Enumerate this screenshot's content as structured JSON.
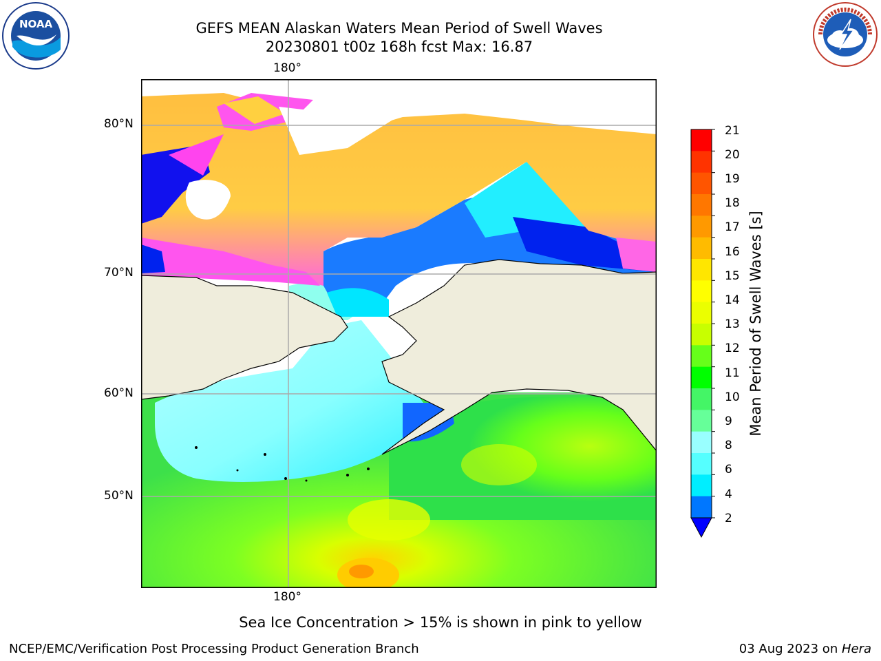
{
  "header": {
    "title_line1": "GEFS MEAN Alaskan Waters Mean Period of Swell Waves",
    "title_line2": "20230801 t00z 168h fcst   Max: 16.87"
  },
  "logos": {
    "left_text": "NOAA",
    "left_ring_text": "NATIONAL OCEANIC AND ATMOSPHERIC ADMINISTRATION · U.S. DEPARTMENT OF COMMERCE",
    "right_ring_text": "NATIONAL WEATHER SERVICE"
  },
  "map": {
    "lon_label_top": "180°",
    "lon_label_bottom": "180°",
    "lat_labels": [
      "80°N",
      "70°N",
      "60°N",
      "50°N"
    ]
  },
  "colorbar": {
    "label": "Mean Period of Swell Waves [s]",
    "ticks": [
      "21",
      "20",
      "19",
      "18",
      "17",
      "16",
      "15",
      "14",
      "13",
      "12",
      "11",
      "10",
      "9",
      "8",
      "6",
      "4",
      "2"
    ],
    "colors": [
      "#ff0000",
      "#ff3300",
      "#ff5500",
      "#ff7700",
      "#ff9900",
      "#ffbb00",
      "#ffe600",
      "#ffff00",
      "#ebff00",
      "#c8ff00",
      "#66ff1a",
      "#00ff00",
      "#44f566",
      "#66ff99",
      "#99ffff",
      "#55ffff",
      "#00eeff",
      "#0077ff",
      "#0000ff"
    ]
  },
  "annotation": "Sea Ice Concentration > 15% is shown in pink to yellow",
  "footer": {
    "left": "NCEP/EMC/Verification Post Processing Product Generation Branch",
    "right_prefix": "03 Aug 2023 on ",
    "right_machine": "Hera"
  }
}
